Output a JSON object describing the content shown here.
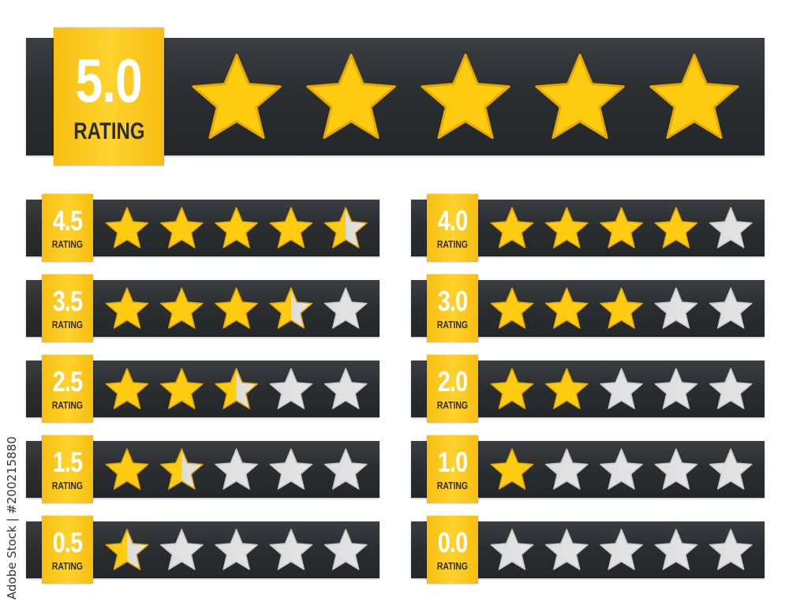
{
  "colors": {
    "bar": "#2a2d30",
    "badge": "#ffcb1f",
    "star_filled": "#ffcc11",
    "star_empty": "#dcdcdc",
    "label_text": "#2b2e31"
  },
  "rating_label": "RATING",
  "featured": {
    "value": "5.0",
    "rating": 5.0,
    "stars_total": 5
  },
  "rows": [
    {
      "value": "4.5",
      "rating": 4.5
    },
    {
      "value": "4.0",
      "rating": 4.0
    },
    {
      "value": "3.5",
      "rating": 3.5
    },
    {
      "value": "3.0",
      "rating": 3.0
    },
    {
      "value": "2.5",
      "rating": 2.5
    },
    {
      "value": "2.0",
      "rating": 2.0
    },
    {
      "value": "1.5",
      "rating": 1.5
    },
    {
      "value": "1.0",
      "rating": 1.0
    },
    {
      "value": "0.5",
      "rating": 0.5
    },
    {
      "value": "0.0",
      "rating": 0.0
    }
  ],
  "watermark": "Adobe Stock | #200215880"
}
